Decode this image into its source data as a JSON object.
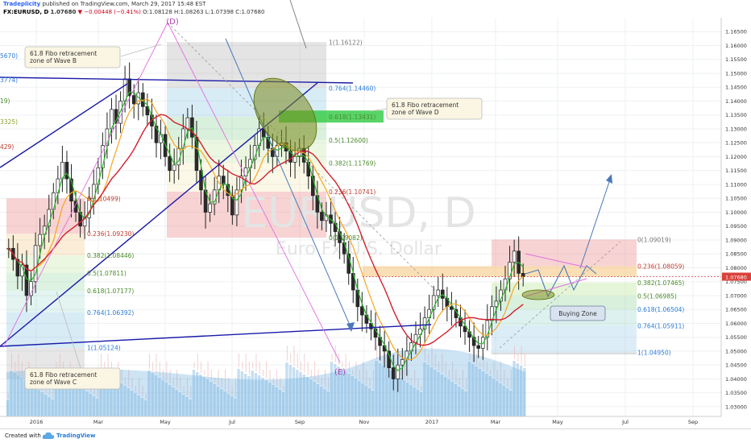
{
  "header": {
    "brand": "Tradeplicity",
    "published": "published on TradingView.com, March 29, 2017 15:48 EST",
    "symbol": "FX:EURUSD, D",
    "last": "1.07680",
    "change": "▼ −0.00448 (−0.41%)",
    "ohlc": "O:1.08128 H:1.08263 L:1.07398 C:1.07680"
  },
  "footer": {
    "created": "Created with",
    "brand": "TradingView"
  },
  "watermark": {
    "symbol": "EURUSD, D",
    "name": "Euro Fx/U.S. Dollar"
  },
  "colors": {
    "up": "#2a2a2a",
    "down": "#2a2a2a",
    "ma_fast": "#2bb52b",
    "ma_mid": "#f5a623",
    "ma_slow": "#d21f2f",
    "trend": "#1a1aa8",
    "wave": "#e070e0",
    "projection": "#4a78b8",
    "price_label": "#d8413a"
  },
  "chart_data": {
    "type": "candlestick",
    "title": "",
    "x_ticks": [
      "2016",
      "Mar",
      "May",
      "Jul",
      "Sep",
      "Nov",
      "2017",
      "Mar",
      "May",
      "Jul",
      "Sep"
    ],
    "y_ticks": [
      "1.16500",
      "1.16000",
      "1.15500",
      "1.15000",
      "1.14500",
      "1.14000",
      "1.13500",
      "1.13000",
      "1.12500",
      "1.12000",
      "1.11500",
      "1.11000",
      "1.10500",
      "1.10000",
      "1.09500",
      "1.09000",
      "1.08500",
      "1.08000",
      "1.07500",
      "1.07000",
      "1.06500",
      "1.06000",
      "1.05500",
      "1.05000",
      "1.04500",
      "1.04000",
      "1.03500",
      "1.03000"
    ],
    "ylim": [
      1.0265,
      1.17
    ],
    "last_price": "1.07680",
    "closes": [
      1.087,
      1.083,
      1.077,
      1.081,
      1.07,
      1.075,
      1.088,
      1.092,
      1.095,
      1.101,
      1.107,
      1.112,
      1.118,
      1.112,
      1.104,
      1.1,
      1.095,
      1.098,
      1.105,
      1.11,
      1.116,
      1.124,
      1.13,
      1.137,
      1.132,
      1.14,
      1.148,
      1.142,
      1.139,
      1.143,
      1.138,
      1.135,
      1.131,
      1.125,
      1.128,
      1.12,
      1.115,
      1.117,
      1.123,
      1.13,
      1.134,
      1.127,
      1.115,
      1.108,
      1.1,
      1.103,
      1.108,
      1.113,
      1.11,
      1.106,
      1.099,
      1.108,
      1.113,
      1.116,
      1.119,
      1.124,
      1.13,
      1.127,
      1.123,
      1.12,
      1.124,
      1.125,
      1.122,
      1.118,
      1.12,
      1.123,
      1.118,
      1.113,
      1.106,
      1.1,
      1.097,
      1.099,
      1.096,
      1.093,
      1.089,
      1.085,
      1.078,
      1.072,
      1.066,
      1.063,
      1.06,
      1.058,
      1.055,
      1.052,
      1.05,
      1.044,
      1.04,
      1.045,
      1.047,
      1.05,
      1.053,
      1.056,
      1.058,
      1.062,
      1.065,
      1.07,
      1.072,
      1.069,
      1.066,
      1.065,
      1.062,
      1.059,
      1.057,
      1.055,
      1.052,
      1.051,
      1.055,
      1.061,
      1.066,
      1.068,
      1.072,
      1.076,
      1.082,
      1.086,
      1.078,
      1.0768
    ],
    "moving_averages": [
      {
        "color": "green"
      },
      {
        "color": "orange"
      },
      {
        "color": "red"
      }
    ],
    "fib_levels_right": [
      {
        "label": "0(1.09019)",
        "value": 1.09019
      },
      {
        "label": "0.236(1.08059)",
        "value": 1.08059
      },
      {
        "label": "0.382(1.07465)",
        "value": 1.07465
      },
      {
        "label": "0.5(1.06985)",
        "value": 1.06985
      },
      {
        "label": "0.618(1.06504)",
        "value": 1.06504
      },
      {
        "label": "0.764(1.05911)",
        "value": 1.05911
      },
      {
        "label": "1(1.04950)",
        "value": 1.0495
      }
    ],
    "fib_levels_mid": [
      {
        "label": "1(1.16122)",
        "value": 1.16122
      },
      {
        "label": "0.764(1.14460)",
        "value": 1.1446
      },
      {
        "label": "0.618(1.13431)",
        "value": 1.13431
      },
      {
        "label": "0.5(1.12600)",
        "value": 1.126
      },
      {
        "label": "0.382(1.11769)",
        "value": 1.11769
      },
      {
        "label": "0.236(1.10741)",
        "value": 1.10741
      },
      {
        "label": "0(1.09082)",
        "value": 1.09082
      }
    ],
    "fib_levels_left": [
      {
        "label": "0(1.10499)",
        "value": 1.10499
      },
      {
        "label": "0.236(1.09230)",
        "value": 1.0923
      },
      {
        "label": "0.382(1.08446)",
        "value": 1.08446
      },
      {
        "label": "0.5(1.07811)",
        "value": 1.07811
      },
      {
        "label": "0.618(1.07177)",
        "value": 1.07177
      },
      {
        "label": "0.764(1.06392)",
        "value": 1.06392
      },
      {
        "label": "1(1.05124)",
        "value": 1.05124
      }
    ],
    "left_edge_labels": [
      "5670)",
      "3774)",
      "19)",
      "3325)",
      "429)"
    ],
    "annotations": [
      "61.8 Fibo retracement zone of Wave B",
      "61.8 Fibo retracement zone of Wave D",
      "61.8 Fibo retracement zone of Wave C",
      "Buying Zone"
    ],
    "wave_labels": [
      "(D)",
      "(E)"
    ]
  }
}
